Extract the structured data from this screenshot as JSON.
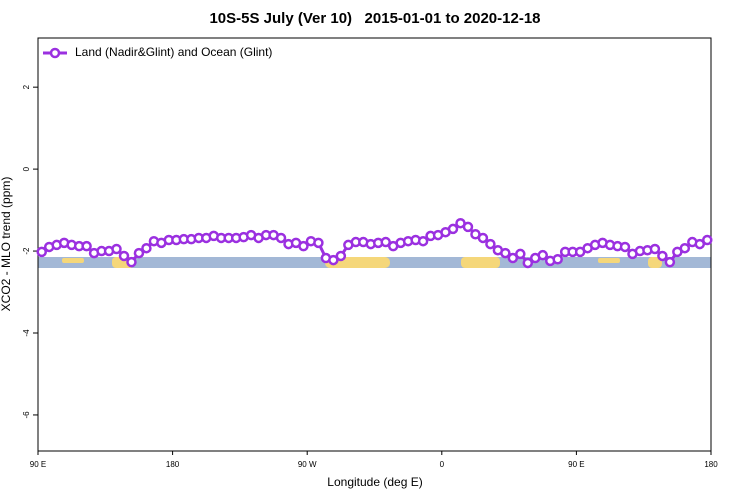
{
  "chart_data": {
    "type": "line",
    "title": "10S-5S July (Ver 10)   2015-01-01 to 2020-12-18",
    "x_label": "Longitude (deg E)",
    "y_label": "XCO2 - MLO trend (ppm)",
    "xlim": [
      90,
      540
    ],
    "ylim": [
      -6.88,
      3.2
    ],
    "xticks": [
      {
        "value": 90,
        "label": "90 E"
      },
      180,
      {
        "value": 270,
        "label": "90 W"
      },
      {
        "value": 360,
        "label": "0"
      },
      {
        "value": 450,
        "label": "90 E"
      },
      {
        "value": 540,
        "label": "180"
      }
    ],
    "yticks": [
      2,
      0,
      -2,
      -4,
      -6
    ],
    "legend": "top-left",
    "x": [
      92.5,
      97.5,
      102.5,
      107.5,
      112.5,
      117.5,
      122.5,
      127.5,
      132.5,
      137.5,
      142.5,
      147.5,
      152.5,
      157.5,
      162.5,
      167.5,
      172.5,
      177.5,
      182.5,
      187.5,
      192.5,
      197.5,
      202.5,
      207.5,
      212.5,
      217.5,
      222.5,
      227.5,
      232.5,
      237.5,
      242.5,
      247.5,
      252.5,
      257.5,
      262.5,
      267.5,
      272.5,
      277.5,
      282.5,
      287.5,
      292.5,
      297.5,
      302.5,
      307.5,
      312.5,
      317.5,
      322.5,
      327.5,
      332.5,
      337.5,
      342.5,
      347.5,
      352.5,
      357.5,
      362.5,
      367.5,
      372.5,
      377.5,
      382.5,
      387.5,
      392.5,
      397.5,
      402.5,
      407.5,
      412.5,
      417.5,
      422.5,
      427.5,
      432.5,
      437.5,
      442.5,
      447.5,
      452.5,
      457.5,
      462.5,
      467.5,
      472.5,
      477.5,
      482.5,
      487.5,
      492.5,
      497.5,
      502.5,
      507.5,
      512.5,
      517.5,
      522.5,
      527.5,
      532.5,
      537.5
    ],
    "series": [
      {
        "name": "Land (Nadir&Glint) and Ocean (Glint)",
        "color": "#9b30e0",
        "values": [
          -2.02,
          -1.9,
          -1.85,
          -1.8,
          -1.85,
          -1.88,
          -1.88,
          -2.05,
          -2.0,
          -2.0,
          -1.95,
          -2.12,
          -2.27,
          -2.05,
          -1.93,
          -1.76,
          -1.8,
          -1.73,
          -1.73,
          -1.71,
          -1.71,
          -1.68,
          -1.68,
          -1.63,
          -1.68,
          -1.68,
          -1.68,
          -1.66,
          -1.61,
          -1.68,
          -1.61,
          -1.61,
          -1.68,
          -1.83,
          -1.8,
          -1.88,
          -1.76,
          -1.8,
          -2.17,
          -2.22,
          -2.12,
          -1.85,
          -1.78,
          -1.78,
          -1.83,
          -1.8,
          -1.78,
          -1.88,
          -1.8,
          -1.76,
          -1.73,
          -1.76,
          -1.63,
          -1.61,
          -1.54,
          -1.46,
          -1.32,
          -1.41,
          -1.59,
          -1.68,
          -1.83,
          -1.98,
          -2.05,
          -2.17,
          -2.07,
          -2.29,
          -2.17,
          -2.1,
          -2.24,
          -2.2,
          -2.02,
          -2.02,
          -2.02,
          -1.93,
          -1.85,
          -1.8,
          -1.85,
          -1.88,
          -1.9,
          -2.07,
          -2.0,
          -1.98,
          -1.95,
          -2.12,
          -2.27,
          -2.02,
          -1.93,
          -1.78,
          -1.83,
          -1.73
        ]
      }
    ]
  }
}
